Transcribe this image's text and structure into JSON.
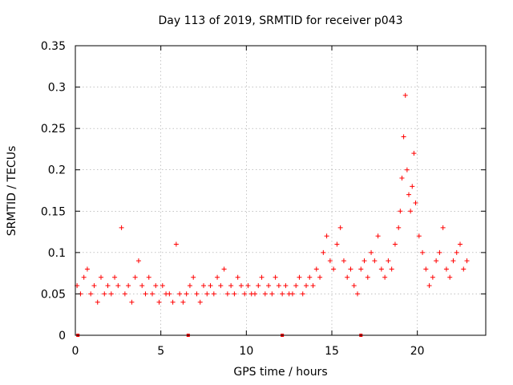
{
  "chart_data": {
    "type": "scatter",
    "title": "Day 113 of 2019, SRMTID for receiver p043",
    "xlabel": "GPS time / hours",
    "ylabel": "SRMTID / TECUs",
    "xlim": [
      0,
      24
    ],
    "ylim": [
      0,
      0.35
    ],
    "x_ticks": [
      0,
      5,
      10,
      15,
      20
    ],
    "y_ticks": [
      0,
      0.05,
      0.1,
      0.15,
      0.2,
      0.25,
      0.3,
      0.35
    ],
    "x_tick_labels": [
      "0",
      "5",
      "10",
      "15",
      "20"
    ],
    "y_tick_labels": [
      "0",
      "0.05",
      "0.1",
      "0.15",
      "0.2",
      "0.25",
      "0.3",
      "0.35"
    ],
    "grid": true,
    "marker": "+",
    "color": "#ff0000",
    "series": [
      {
        "name": "SRMTID p043",
        "x": [
          0.1,
          0.3,
          0.5,
          0.7,
          0.9,
          1.1,
          1.3,
          1.5,
          1.7,
          1.9,
          2.1,
          2.3,
          2.5,
          2.7,
          2.9,
          3.1,
          3.3,
          3.5,
          3.7,
          3.9,
          4.1,
          4.3,
          4.5,
          4.7,
          4.9,
          5.1,
          5.3,
          5.5,
          5.7,
          5.9,
          6.1,
          6.3,
          6.5,
          6.7,
          6.9,
          7.1,
          7.3,
          7.5,
          7.7,
          7.9,
          8.1,
          8.3,
          8.5,
          8.7,
          8.9,
          9.1,
          9.3,
          9.5,
          9.7,
          9.9,
          10.1,
          10.3,
          10.5,
          10.7,
          10.9,
          11.1,
          11.3,
          11.5,
          11.7,
          11.9,
          12.1,
          12.3,
          12.5,
          12.7,
          12.9,
          13.1,
          13.3,
          13.5,
          13.7,
          13.9,
          14.1,
          14.3,
          14.5,
          14.7,
          14.9,
          15.1,
          15.3,
          15.5,
          15.7,
          15.9,
          16.1,
          16.3,
          16.5,
          16.7,
          16.9,
          17.1,
          17.3,
          17.5,
          17.7,
          17.9,
          18.1,
          18.3,
          18.5,
          18.7,
          18.9,
          19.0,
          19.1,
          19.2,
          19.3,
          19.4,
          19.5,
          19.6,
          19.7,
          19.8,
          19.9,
          20.1,
          20.3,
          20.5,
          20.7,
          20.9,
          21.1,
          21.3,
          21.5,
          21.7,
          21.9,
          22.1,
          22.3,
          22.5,
          22.7,
          22.9
        ],
        "y": [
          0.06,
          0.05,
          0.07,
          0.08,
          0.05,
          0.06,
          0.04,
          0.07,
          0.05,
          0.06,
          0.05,
          0.07,
          0.06,
          0.13,
          0.05,
          0.06,
          0.04,
          0.07,
          0.09,
          0.06,
          0.05,
          0.07,
          0.05,
          0.06,
          0.04,
          0.06,
          0.05,
          0.05,
          0.04,
          0.11,
          0.05,
          0.04,
          0.05,
          0.06,
          0.07,
          0.05,
          0.04,
          0.06,
          0.05,
          0.06,
          0.05,
          0.07,
          0.06,
          0.08,
          0.05,
          0.06,
          0.05,
          0.07,
          0.06,
          0.05,
          0.06,
          0.05,
          0.05,
          0.06,
          0.07,
          0.05,
          0.06,
          0.05,
          0.07,
          0.06,
          0.05,
          0.06,
          0.05,
          0.05,
          0.06,
          0.07,
          0.05,
          0.06,
          0.07,
          0.06,
          0.08,
          0.07,
          0.1,
          0.12,
          0.09,
          0.08,
          0.11,
          0.13,
          0.09,
          0.07,
          0.08,
          0.06,
          0.05,
          0.08,
          0.09,
          0.07,
          0.1,
          0.09,
          0.12,
          0.08,
          0.07,
          0.09,
          0.08,
          0.11,
          0.13,
          0.15,
          0.19,
          0.24,
          0.29,
          0.2,
          0.17,
          0.15,
          0.18,
          0.22,
          0.16,
          0.12,
          0.1,
          0.08,
          0.06,
          0.07,
          0.09,
          0.1,
          0.13,
          0.08,
          0.07,
          0.09,
          0.1,
          0.11,
          0.08,
          0.09
        ]
      }
    ],
    "gap_markers_x": [
      0.15,
      6.6,
      12.1,
      16.7
    ]
  }
}
